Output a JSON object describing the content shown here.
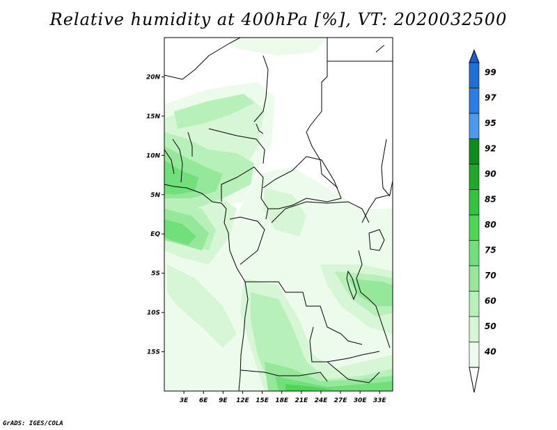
{
  "title": "Relative humidity at 400hPa [%], VT: 2020032500",
  "credit": "GrADS: IGES/COLA",
  "map": {
    "lon_range": [
      0,
      35
    ],
    "lat_range": [
      -20,
      25
    ],
    "lat_ticks": [
      {
        "value": 20,
        "label": "20N"
      },
      {
        "value": 15,
        "label": "15N"
      },
      {
        "value": 10,
        "label": "10N"
      },
      {
        "value": 5,
        "label": "5N"
      },
      {
        "value": 0,
        "label": "EQ"
      },
      {
        "value": -5,
        "label": "5S"
      },
      {
        "value": -10,
        "label": "10S"
      },
      {
        "value": -15,
        "label": "15S"
      }
    ],
    "lon_ticks": [
      {
        "value": 3,
        "label": "3E"
      },
      {
        "value": 6,
        "label": "6E"
      },
      {
        "value": 9,
        "label": "9E"
      },
      {
        "value": 12,
        "label": "12E"
      },
      {
        "value": 15,
        "label": "15E"
      },
      {
        "value": 18,
        "label": "18E"
      },
      {
        "value": 21,
        "label": "21E"
      },
      {
        "value": 24,
        "label": "24E"
      },
      {
        "value": 27,
        "label": "27E"
      },
      {
        "value": 30,
        "label": "30E"
      },
      {
        "value": 33,
        "label": "33E"
      }
    ]
  },
  "colorbar": {
    "levels": [
      {
        "label": "99",
        "color": "#1f6fd6"
      },
      {
        "label": "97",
        "color": "#2b7ce4"
      },
      {
        "label": "95",
        "color": "#4b98ee"
      },
      {
        "label": "92",
        "color": "#0f8c1e"
      },
      {
        "label": "90",
        "color": "#1fa82c"
      },
      {
        "label": "85",
        "color": "#35c23e"
      },
      {
        "label": "80",
        "color": "#4fd654"
      },
      {
        "label": "75",
        "color": "#72e07a"
      },
      {
        "label": "70",
        "color": "#95e899"
      },
      {
        "label": "60",
        "color": "#b7f0b8"
      },
      {
        "label": "50",
        "color": "#d6f6d6"
      },
      {
        "label": "40",
        "color": "#ecfbec"
      }
    ],
    "top_color": "#1a5fc8",
    "bottom_color": "#ffffff"
  }
}
